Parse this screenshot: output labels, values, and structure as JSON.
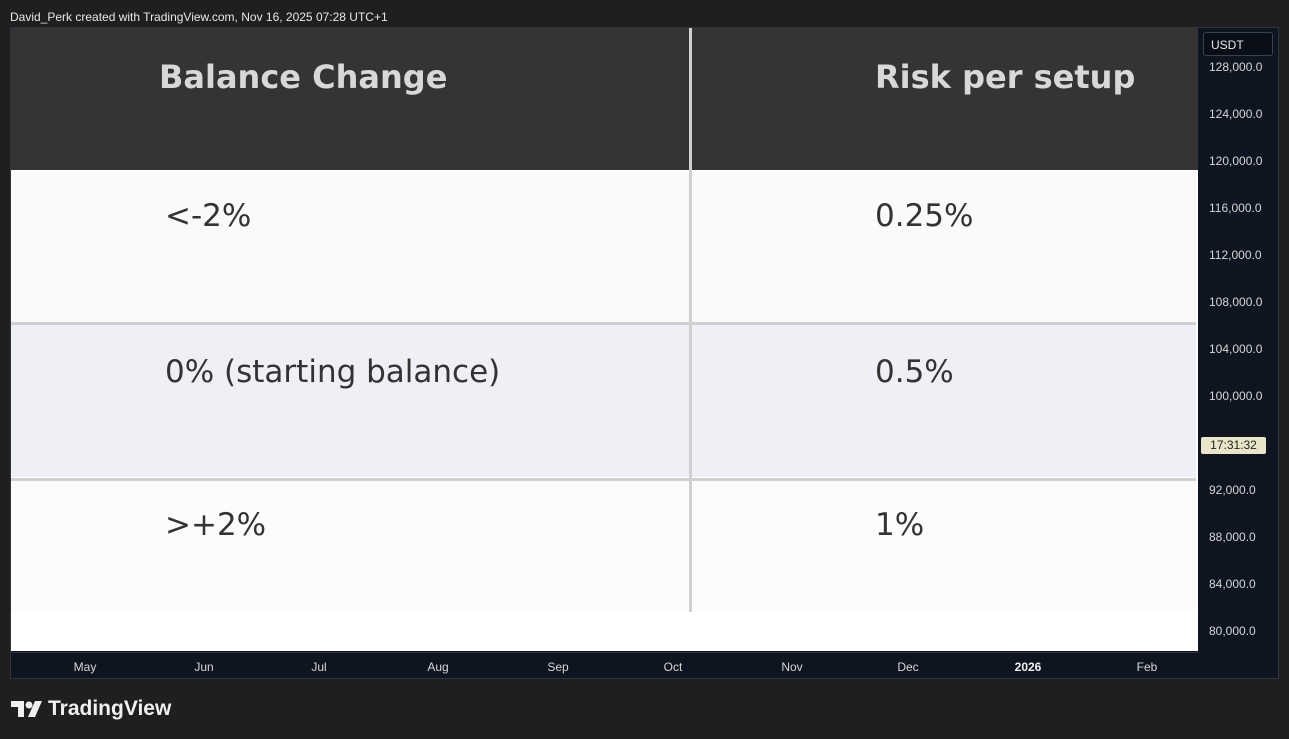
{
  "caption": "David_Perk created with TradingView.com, Nov 16, 2025 07:28 UTC+1",
  "currency": "USDT",
  "table": {
    "headers": [
      "Balance Change",
      "Risk per setup"
    ],
    "rows": [
      [
        "<-2%",
        "0.25%"
      ],
      [
        "0% (starting balance)",
        "0.5%"
      ],
      [
        ">+2%",
        "1%"
      ]
    ]
  },
  "price_scale": [
    "128,000.0",
    "124,000.0",
    "120,000.0",
    "116,000.0",
    "112,000.0",
    "108,000.0",
    "104,000.0",
    "100,000.0",
    "92,000.0",
    "88,000.0",
    "84,000.0",
    "80,000.0"
  ],
  "time_badge": "17:31:32",
  "time_scale": [
    "May",
    "Jun",
    "Jul",
    "Aug",
    "Sep",
    "Oct",
    "Nov",
    "Dec",
    "2026",
    "Feb"
  ],
  "brand": "TradingView"
}
